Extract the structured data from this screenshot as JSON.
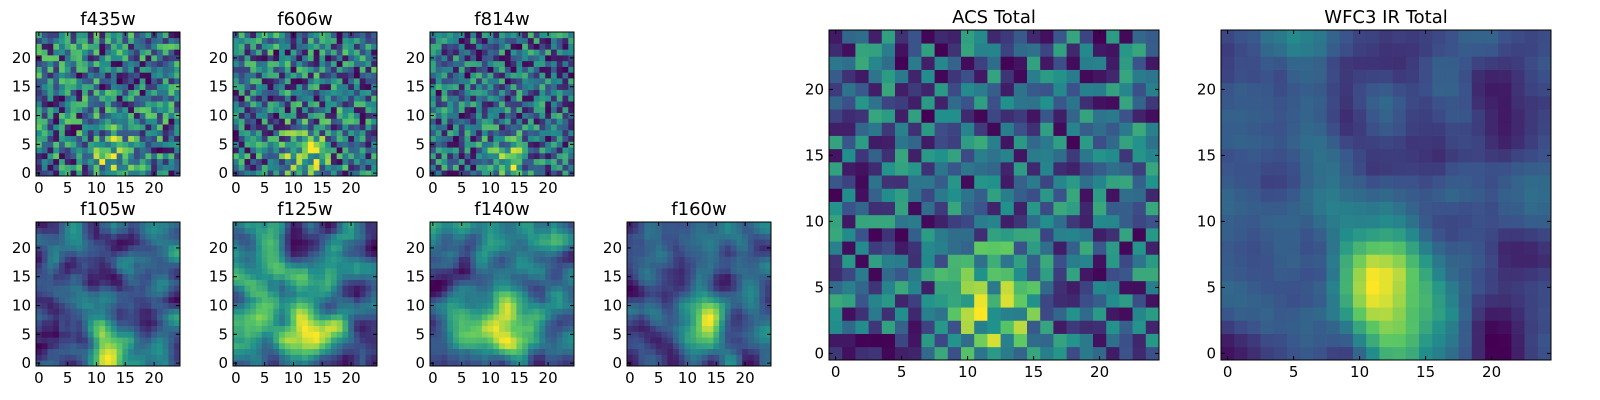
{
  "chart_data": [
    {
      "id": "f435w",
      "type": "heatmap",
      "title": "f435w",
      "grid_size": 25,
      "xlim": [
        0,
        24
      ],
      "ylim": [
        0,
        24
      ],
      "xticks": [
        0,
        5,
        10,
        15,
        20
      ],
      "yticks": [
        0,
        5,
        10,
        15,
        20
      ],
      "grid": false,
      "seed": 11,
      "smooth": 0,
      "peak": [
        13,
        3
      ],
      "peak_strength": 0.45
    },
    {
      "id": "f606w",
      "type": "heatmap",
      "title": "f606w",
      "grid_size": 25,
      "xlim": [
        0,
        24
      ],
      "ylim": [
        0,
        24
      ],
      "xticks": [
        0,
        5,
        10,
        15,
        20
      ],
      "yticks": [
        0,
        5,
        10,
        15,
        20
      ],
      "grid": false,
      "seed": 23,
      "smooth": 0,
      "peak": [
        12,
        3
      ],
      "peak_strength": 0.55
    },
    {
      "id": "f814w",
      "type": "heatmap",
      "title": "f814w",
      "grid_size": 25,
      "xlim": [
        0,
        24
      ],
      "ylim": [
        0,
        24
      ],
      "xticks": [
        0,
        5,
        10,
        15,
        20
      ],
      "yticks": [
        0,
        5,
        10,
        15,
        20
      ],
      "grid": false,
      "seed": 37,
      "smooth": 0,
      "peak": [
        13,
        2
      ],
      "peak_strength": 0.55
    },
    {
      "id": "f105w",
      "type": "heatmap",
      "title": "f105w",
      "grid_size": 25,
      "xlim": [
        0,
        24
      ],
      "ylim": [
        0,
        24
      ],
      "xticks": [
        0,
        5,
        10,
        15,
        20
      ],
      "yticks": [
        0,
        5,
        10,
        15,
        20
      ],
      "grid": false,
      "seed": 41,
      "smooth": 2,
      "peak": [
        12,
        4
      ],
      "peak_strength": 0.3
    },
    {
      "id": "f125w",
      "type": "heatmap",
      "title": "f125w",
      "grid_size": 25,
      "xlim": [
        0,
        24
      ],
      "ylim": [
        0,
        24
      ],
      "xticks": [
        0,
        5,
        10,
        15,
        20
      ],
      "yticks": [
        0,
        5,
        10,
        15,
        20
      ],
      "grid": false,
      "seed": 53,
      "smooth": 2,
      "peak": [
        12,
        5
      ],
      "peak_strength": 0.3
    },
    {
      "id": "f140w",
      "type": "heatmap",
      "title": "f140w",
      "grid_size": 25,
      "xlim": [
        0,
        24
      ],
      "ylim": [
        0,
        24
      ],
      "xticks": [
        0,
        5,
        10,
        15,
        20
      ],
      "yticks": [
        0,
        5,
        10,
        15,
        20
      ],
      "grid": false,
      "seed": 67,
      "smooth": 2,
      "peak": [
        12,
        6
      ],
      "peak_strength": 0.35
    },
    {
      "id": "f160w",
      "type": "heatmap",
      "title": "f160w",
      "grid_size": 25,
      "xlim": [
        0,
        24
      ],
      "ylim": [
        0,
        24
      ],
      "xticks": [
        0,
        5,
        10,
        15,
        20
      ],
      "yticks": [
        0,
        5,
        10,
        15,
        20
      ],
      "grid": false,
      "seed": 79,
      "smooth": 2,
      "peak": [
        13,
        7
      ],
      "peak_strength": 0.45
    },
    {
      "id": "acs-total",
      "type": "heatmap",
      "title": "ACS Total",
      "grid_size": 25,
      "xlim": [
        0,
        24
      ],
      "ylim": [
        0,
        24
      ],
      "xticks": [
        0,
        5,
        10,
        15,
        20
      ],
      "yticks": [
        0,
        5,
        10,
        15,
        20
      ],
      "grid": false,
      "seed": 97,
      "smooth": 0,
      "peak": [
        12,
        3
      ],
      "peak_strength": 0.75
    },
    {
      "id": "wfc3-ir-total",
      "type": "heatmap",
      "title": "WFC3 IR Total",
      "grid_size": 25,
      "xlim": [
        0,
        24
      ],
      "ylim": [
        0,
        24
      ],
      "xticks": [
        0,
        5,
        10,
        15,
        20
      ],
      "yticks": [
        0,
        5,
        10,
        15,
        20
      ],
      "grid": false,
      "seed": 131,
      "smooth": 2,
      "peak": [
        12,
        5
      ],
      "peak_strength": 0.75
    }
  ],
  "colormap": [
    "#440154",
    "#3b528b",
    "#21918c",
    "#5ec962",
    "#fde725"
  ]
}
